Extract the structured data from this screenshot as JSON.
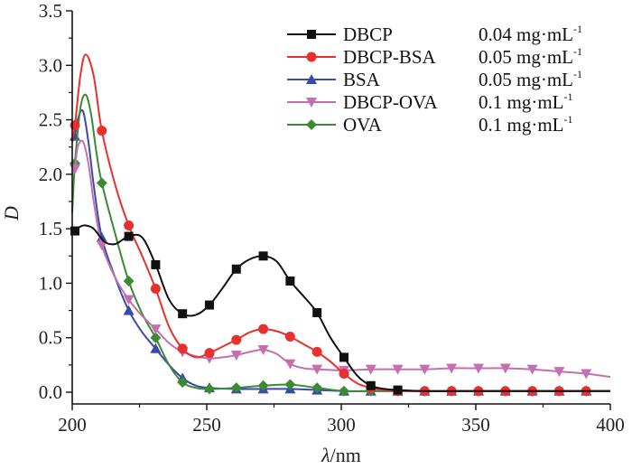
{
  "chart_data": {
    "type": "line",
    "title": "",
    "xlabel_italic": "λ",
    "xlabel_rest": "/nm",
    "ylabel": "D",
    "xlim": [
      200,
      400
    ],
    "ylim": [
      0,
      3.5
    ],
    "xticks": [
      200,
      250,
      300,
      350,
      400
    ],
    "xtick_labels": [
      "200",
      "250",
      "300",
      "350",
      "400"
    ],
    "yticks": [
      0,
      0.5,
      1.0,
      1.5,
      2.0,
      2.5,
      3.0,
      3.5
    ],
    "ytick_labels": [
      "0.0",
      "0.5",
      "1.0",
      "1.5",
      "2.0",
      "2.5",
      "3.0",
      "3.5"
    ],
    "grid": false,
    "legend_position": "top-right",
    "series": [
      {
        "name": "DBCP",
        "concentration": "0.04 mg·mL",
        "conc_sup": "-1",
        "color": "#111111",
        "marker": "square",
        "x": [
          200,
          201,
          203,
          205,
          208,
          212,
          216,
          221,
          226,
          231,
          236,
          241,
          246,
          251,
          256,
          261,
          266,
          271,
          276,
          281,
          286,
          291,
          296,
          301,
          306,
          311,
          316,
          321,
          331,
          341,
          351,
          361,
          371,
          381,
          391,
          400
        ],
        "y": [
          1.45,
          1.48,
          1.52,
          1.53,
          1.5,
          1.38,
          1.36,
          1.43,
          1.42,
          1.17,
          0.85,
          0.72,
          0.71,
          0.8,
          0.96,
          1.13,
          1.22,
          1.25,
          1.2,
          1.02,
          0.88,
          0.73,
          0.5,
          0.32,
          0.15,
          0.06,
          0.03,
          0.02,
          0.01,
          0.01,
          0.01,
          0.01,
          0.01,
          0.01,
          0.01,
          0.01
        ],
        "marker_x": [
          201,
          221,
          231,
          241,
          251,
          261,
          271,
          281,
          291,
          301,
          311,
          321
        ]
      },
      {
        "name": "DBCP-BSA",
        "concentration": "0.05 mg·mL",
        "conc_sup": "-1",
        "color": "#e8312f",
        "marker": "circle",
        "x": [
          200,
          201,
          203,
          205,
          208,
          211,
          216,
          221,
          226,
          231,
          236,
          241,
          246,
          251,
          256,
          261,
          266,
          271,
          276,
          281,
          286,
          291,
          296,
          301,
          306,
          311,
          316,
          321,
          331,
          341,
          351,
          361,
          371,
          381,
          391,
          400
        ],
        "y": [
          2.3,
          2.45,
          2.9,
          3.1,
          2.9,
          2.4,
          1.9,
          1.53,
          1.25,
          0.95,
          0.6,
          0.4,
          0.32,
          0.36,
          0.42,
          0.48,
          0.55,
          0.58,
          0.56,
          0.51,
          0.44,
          0.37,
          0.28,
          0.17,
          0.08,
          0.04,
          0.02,
          0.01,
          0.01,
          0.01,
          0.01,
          0.01,
          0.01,
          0.01,
          0.01,
          0.01
        ],
        "marker_x": [
          201,
          211,
          221,
          231,
          241,
          251,
          261,
          271,
          281,
          291,
          301,
          311,
          321,
          331,
          341,
          351,
          361,
          371,
          381,
          391
        ]
      },
      {
        "name": "BSA",
        "concentration": "0.05 mg·mL",
        "conc_sup": "-1",
        "color": "#3a4aa8",
        "marker": "triangle-up",
        "x": [
          200,
          201,
          202,
          204,
          206,
          208,
          211,
          216,
          221,
          226,
          231,
          236,
          241,
          246,
          251,
          261,
          271,
          281,
          291,
          301,
          311,
          321,
          331,
          341,
          351,
          361,
          371,
          381,
          391,
          400
        ],
        "y": [
          2.3,
          2.35,
          2.5,
          2.58,
          2.3,
          1.9,
          1.42,
          1.05,
          0.75,
          0.55,
          0.4,
          0.25,
          0.13,
          0.06,
          0.04,
          0.03,
          0.03,
          0.03,
          0.02,
          0.01,
          0.01,
          0.01,
          0.01,
          0.01,
          0.01,
          0.01,
          0.01,
          0.01,
          0.01,
          0.01
        ],
        "marker_x": [
          201,
          211,
          221,
          231,
          241,
          251,
          261,
          271,
          281,
          291,
          301,
          311,
          321,
          331,
          341,
          351,
          361,
          371,
          381,
          391
        ]
      },
      {
        "name": "DBCP-OVA",
        "concentration": "0.1 mg·mL",
        "conc_sup": "-1",
        "color": "#c470b0",
        "marker": "triangle-down",
        "x": [
          200,
          201,
          202,
          204,
          206,
          208,
          211,
          216,
          221,
          226,
          231,
          236,
          241,
          246,
          251,
          256,
          261,
          266,
          271,
          276,
          281,
          286,
          291,
          301,
          311,
          321,
          331,
          341,
          351,
          361,
          371,
          381,
          391,
          400
        ],
        "y": [
          2.0,
          2.05,
          2.25,
          2.3,
          2.1,
          1.75,
          1.35,
          1.05,
          0.85,
          0.7,
          0.58,
          0.45,
          0.37,
          0.33,
          0.31,
          0.32,
          0.34,
          0.37,
          0.39,
          0.35,
          0.26,
          0.22,
          0.21,
          0.2,
          0.21,
          0.21,
          0.21,
          0.22,
          0.22,
          0.22,
          0.21,
          0.19,
          0.17,
          0.14
        ],
        "marker_x": [
          201,
          211,
          221,
          231,
          241,
          251,
          261,
          271,
          281,
          291,
          301,
          311,
          321,
          331,
          341,
          351,
          361,
          371,
          381,
          391
        ]
      },
      {
        "name": "OVA",
        "concentration": "0.1 mg·mL",
        "conc_sup": "-1",
        "color": "#3d8a34",
        "marker": "diamond",
        "x": [
          200,
          201,
          203,
          205,
          207,
          209,
          211,
          216,
          221,
          226,
          231,
          236,
          241,
          246,
          251,
          261,
          271,
          281,
          291,
          301,
          311,
          321,
          331,
          341,
          351,
          361,
          371,
          381,
          391,
          400
        ],
        "y": [
          1.65,
          2.1,
          2.6,
          2.73,
          2.55,
          2.2,
          1.92,
          1.45,
          1.02,
          0.72,
          0.5,
          0.25,
          0.09,
          0.04,
          0.03,
          0.04,
          0.06,
          0.07,
          0.04,
          0.01,
          0.01,
          0.01,
          0.01,
          0.01,
          0.01,
          0.01,
          0.01,
          0.01,
          0.01,
          0.01
        ],
        "marker_x": [
          201,
          211,
          221,
          231,
          241,
          251,
          261,
          271,
          281,
          291,
          301,
          311,
          321,
          331,
          341,
          351,
          361,
          371,
          381,
          391
        ]
      }
    ]
  }
}
